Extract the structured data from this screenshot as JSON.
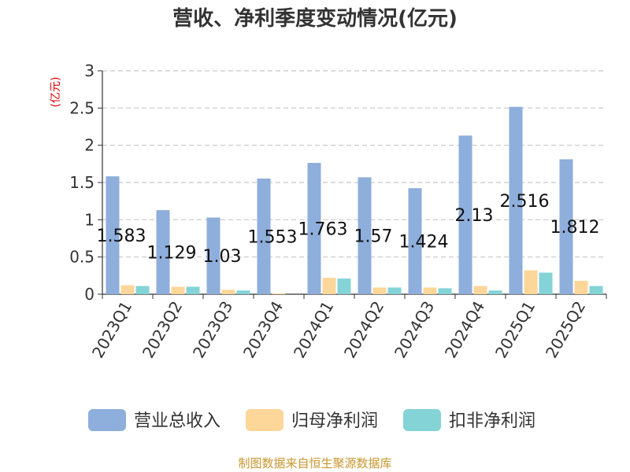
{
  "chart_data": {
    "type": "bar",
    "title": "营收、净利季度变动情况(亿元)",
    "ylabel": "(亿元)",
    "xlabel": "",
    "ylim": [
      0,
      3
    ],
    "yticks": [
      0,
      0.5,
      1,
      1.5,
      2,
      2.5,
      3
    ],
    "ytick_labels": [
      "0",
      "0.5",
      "1",
      "1.5",
      "2",
      "2.5",
      "3"
    ],
    "grid": true,
    "legend_position": "bottom",
    "categories": [
      "2023Q1",
      "2023Q2",
      "2023Q3",
      "2023Q4",
      "2024Q1",
      "2024Q2",
      "2024Q3",
      "2024Q4",
      "2025Q1",
      "2025Q2"
    ],
    "series": [
      {
        "name": "营业总收入",
        "color": "#8eaedb",
        "values": [
          1.583,
          1.129,
          1.03,
          1.553,
          1.763,
          1.57,
          1.424,
          2.13,
          2.516,
          1.812
        ],
        "labels": [
          "1.583",
          "1.129",
          "1.03",
          "1.553",
          "1.763",
          "1.57",
          "1.424",
          "2.13",
          "2.516",
          "1.812"
        ]
      },
      {
        "name": "归母净利润",
        "color": "#fdd699",
        "values": [
          0.12,
          0.1,
          0.06,
          0.01,
          0.22,
          0.09,
          0.09,
          0.11,
          0.32,
          0.18
        ]
      },
      {
        "name": "扣非净利润",
        "color": "#84d3d6",
        "values": [
          0.11,
          0.1,
          0.05,
          0.0,
          0.21,
          0.09,
          0.08,
          0.05,
          0.29,
          0.11
        ]
      }
    ],
    "source": "制图数据来自恒生聚源数据库"
  }
}
